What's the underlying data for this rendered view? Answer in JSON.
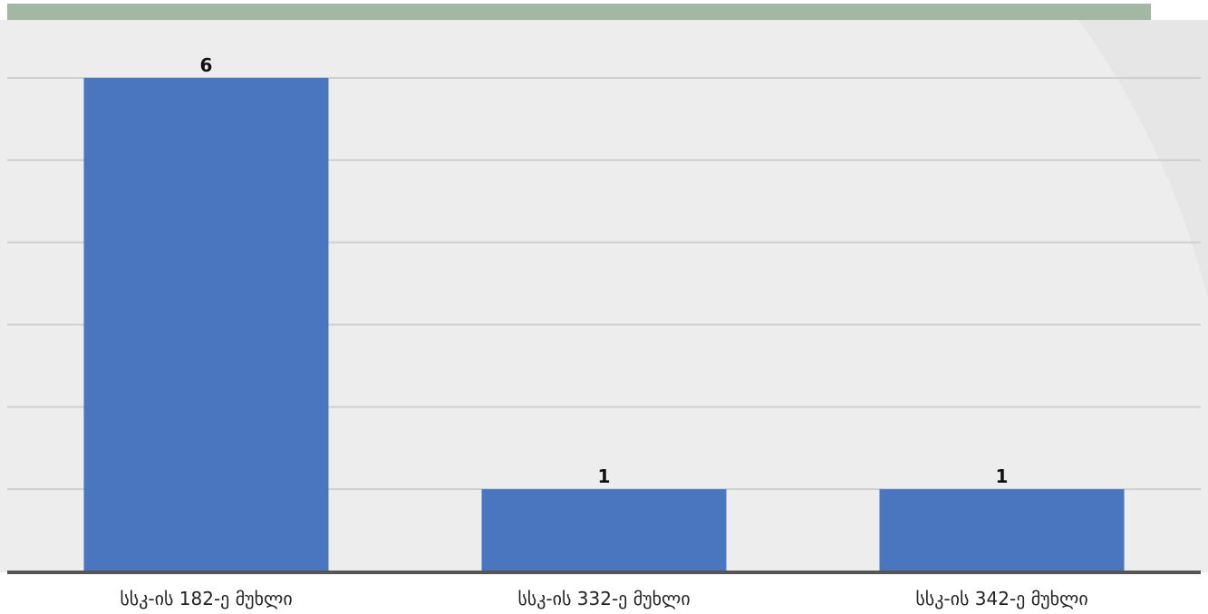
{
  "chart_data": {
    "type": "bar",
    "categories": [
      "სსკ-ის 182-ე მუხლი",
      "სსკ-ის 332-ე მუხლი",
      "სსკ-ის 342-ე მუხლი"
    ],
    "values": [
      6,
      1,
      1
    ],
    "ylim": [
      0,
      6
    ],
    "grid": true,
    "data_labels": [
      "6",
      "1",
      "1"
    ],
    "colors": {
      "bar": "#4a75bf",
      "plot_background": "#ededed",
      "top_band": "#a3b8a3",
      "gridline": "#cfcfcf",
      "baseline": "#555555"
    }
  }
}
